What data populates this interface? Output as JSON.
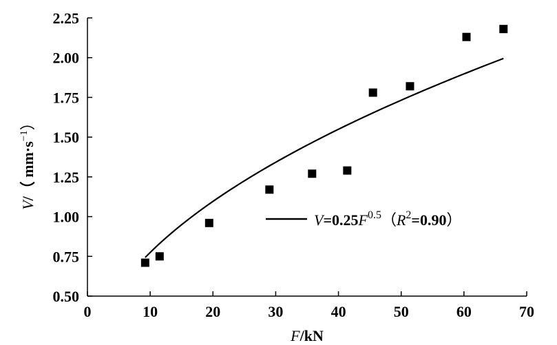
{
  "chart_data": {
    "type": "scatter",
    "xlabel": {
      "var": "F",
      "unit": "/kN"
    },
    "ylabel": {
      "var": "V",
      "unit": "/（ mm·s",
      "exp": "−1",
      "close": "）"
    },
    "xlim": [
      0,
      70
    ],
    "ylim": [
      0.5,
      2.25
    ],
    "xticks": [
      "0",
      "10",
      "20",
      "30",
      "40",
      "50",
      "60",
      "70"
    ],
    "yticks": [
      "0.50",
      "0.75",
      "1.00",
      "1.25",
      "1.50",
      "1.75",
      "2.00",
      "2.25"
    ],
    "grid": false,
    "legend": {
      "placement": "lower-right",
      "var": "V",
      "eq": "=0.25",
      "fvar": "F",
      "fexp": "0.5",
      "open": "（",
      "rvar": "R",
      "rexp": "2",
      "rval": "=0.90",
      "close": "）"
    },
    "series": [
      {
        "kind": "scatter",
        "x": [
          9.2,
          11.5,
          19.4,
          29.0,
          35.8,
          41.4,
          45.5,
          51.4,
          60.4,
          66.3
        ],
        "y": [
          0.71,
          0.75,
          0.96,
          1.17,
          1.27,
          1.29,
          1.78,
          1.82,
          2.13,
          2.18
        ]
      },
      {
        "kind": "line",
        "fit": {
          "a": 0.245,
          "b": 0.5
        },
        "x_range": [
          9.2,
          66.3
        ]
      }
    ]
  }
}
